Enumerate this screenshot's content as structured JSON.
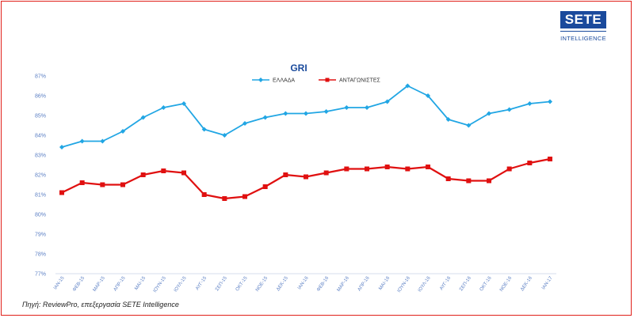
{
  "logo": {
    "main": "SETE",
    "sub": "INTELLIGENCE"
  },
  "source": "Πηγή: ReviewPro, επεξεργασία SETE Intelligence",
  "colors": {
    "series1": "#21a6e4",
    "series2": "#e01010",
    "axis": "#5b7fc4",
    "frame": "#e0201a",
    "brand": "#1a4a9c"
  },
  "chart_data": {
    "type": "line",
    "title": "GRI",
    "categories": [
      "ΙΑΝ-15",
      "ΦΕΒ-15",
      "ΜΑΡ-15",
      "ΑΠΡ-15",
      "ΜΑΙ-15",
      "ΙΟΥΝ-15",
      "ΙΟΥΛ-15",
      "ΑΥΓ-15",
      "ΣΕΠ-15",
      "ΟΚΤ-15",
      "ΝΟΕ-15",
      "ΔΕΚ-15",
      "ΙΑΝ-16",
      "ΦΕΒ-16",
      "ΜΑΡ-16",
      "ΑΠΡ-16",
      "ΜΑΙ-16",
      "ΙΟΥΝ-16",
      "ΙΟΥΛ-16",
      "ΑΥΓ-16",
      "ΣΕΠ-16",
      "ΟΚΤ-16",
      "ΝΟΕ-16",
      "ΔΕΚ-16",
      "ΙΑΝ-17"
    ],
    "series": [
      {
        "name": "ΕΛΛΑΔΑ",
        "values": [
          83.4,
          83.7,
          83.7,
          84.2,
          84.9,
          85.4,
          85.6,
          84.3,
          84.0,
          84.6,
          84.9,
          85.1,
          85.1,
          85.2,
          85.4,
          85.4,
          85.7,
          86.5,
          86.0,
          84.8,
          84.5,
          85.1,
          85.3,
          85.6,
          85.7
        ]
      },
      {
        "name": "ΑΝΤΑΓΩΝΙΣΤΕΣ",
        "values": [
          81.1,
          81.6,
          81.5,
          81.5,
          82.0,
          82.2,
          82.1,
          81.0,
          80.8,
          80.9,
          81.4,
          82.0,
          81.9,
          82.1,
          82.3,
          82.3,
          82.4,
          82.3,
          82.4,
          81.8,
          81.7,
          81.7,
          82.3,
          82.6,
          82.8
        ]
      }
    ],
    "ylim": [
      77,
      87
    ],
    "yticks": [
      "77%",
      "78%",
      "79%",
      "80%",
      "81%",
      "82%",
      "83%",
      "84%",
      "85%",
      "86%",
      "87%"
    ],
    "grid": false,
    "legend": "top-center"
  }
}
